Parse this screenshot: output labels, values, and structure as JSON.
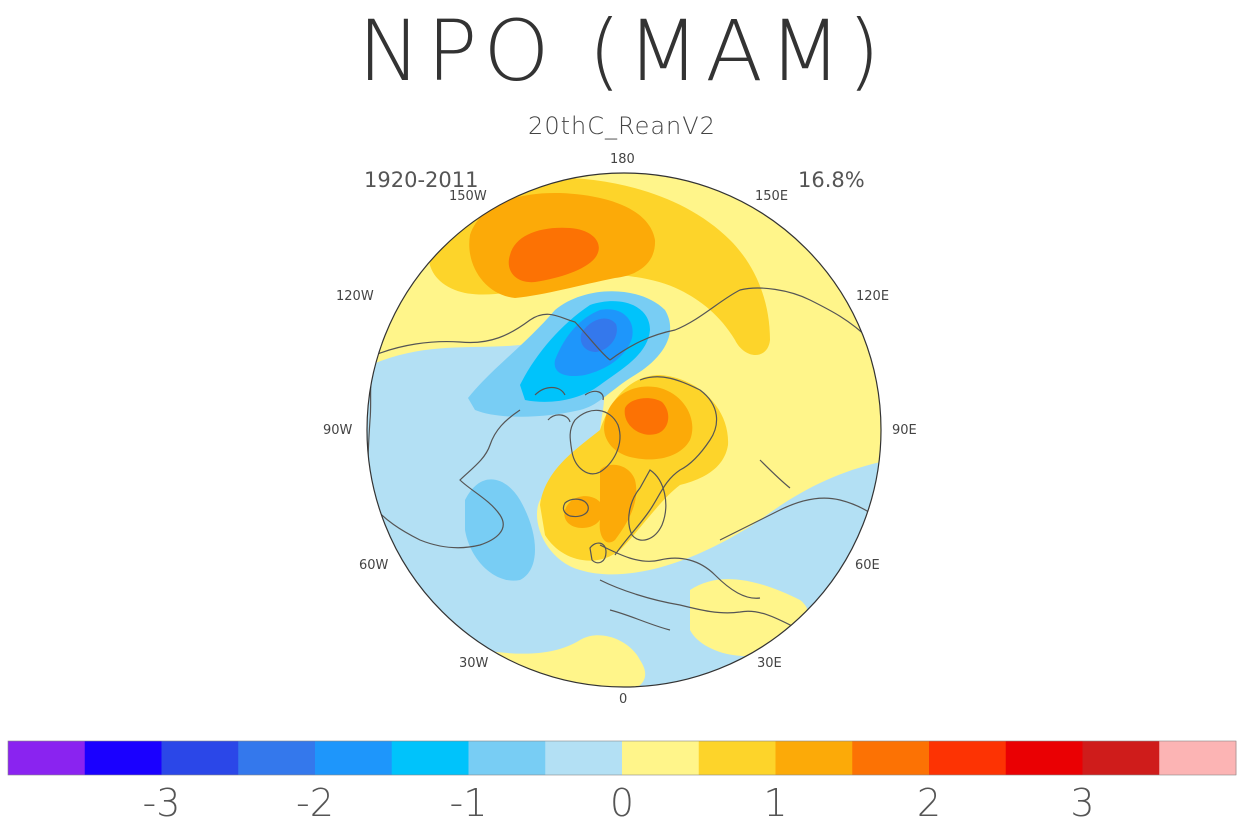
{
  "title": "NPO (MAM)",
  "subtitle": "20thC_ReanV2",
  "period": "1920-2011",
  "variance": "16.8%",
  "longitude_labels": {
    "lon_0": "0",
    "lon_30e": "30E",
    "lon_60e": "60E",
    "lon_90e": "90E",
    "lon_120e": "120E",
    "lon_150e": "150E",
    "lon_180": "180",
    "lon_150w": "150W",
    "lon_120w": "120W",
    "lon_90w": "90W",
    "lon_60w": "60W",
    "lon_30w": "30W"
  },
  "colorbar": {
    "colors": [
      "#8a23f0",
      "#1a00ff",
      "#2b47e8",
      "#3478ec",
      "#1e96fb",
      "#00c3fb",
      "#78cdf4",
      "#b3e0f4",
      "#fff58a",
      "#fdd42a",
      "#fcaa08",
      "#fc7204",
      "#fd3303",
      "#ea0003",
      "#cf1c1b",
      "#fcb4b4"
    ],
    "tick_labels": [
      "-3",
      "-2",
      "-1",
      "0",
      "1",
      "2",
      "3"
    ]
  },
  "colors": {
    "land_outline": "#555555",
    "background": "#ffffff"
  }
}
